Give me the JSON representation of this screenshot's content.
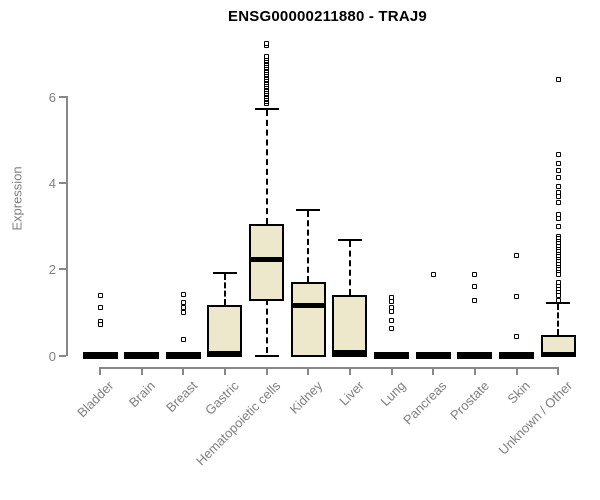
{
  "chart_data": {
    "type": "boxplot",
    "title": "ENSG00000211880 - TRAJ9",
    "ylabel": "Expression",
    "xlabel": "",
    "yticks": [
      0,
      2,
      4,
      6
    ],
    "ylim": [
      0,
      7.4
    ],
    "grid": false,
    "legend": "none",
    "colors": {
      "box_fill": "#EDE7CB",
      "box_stroke": "#000000",
      "axis_color": "#888888",
      "label_color": "#7f7f7f",
      "title_color": "#000000"
    },
    "categories": [
      "Bladder",
      "Brain",
      "Breast",
      "Gastric",
      "Hematopoietic cells",
      "Kidney",
      "Liver",
      "Lung",
      "Pancreas",
      "Prostate",
      "Skin",
      "Unknown / Other"
    ],
    "boxes": [
      {
        "category": "Bladder",
        "q1": 0,
        "median": 0,
        "q3": 0,
        "whisker_low": 0,
        "whisker_high": 0,
        "outliers": [
          1.4,
          1.12,
          0.78,
          0.72
        ]
      },
      {
        "category": "Brain",
        "q1": 0,
        "median": 0,
        "q3": 0,
        "whisker_low": 0,
        "whisker_high": 0,
        "outliers": []
      },
      {
        "category": "Breast",
        "q1": 0,
        "median": 0,
        "q3": 0,
        "whisker_low": 0,
        "whisker_high": 0,
        "outliers": [
          1.42,
          1.22,
          1.11,
          1.0,
          0.36
        ]
      },
      {
        "category": "Gastric",
        "q1": 0,
        "median": 0.05,
        "q3": 1.17,
        "whisker_low": 0,
        "whisker_high": 1.91,
        "outliers": []
      },
      {
        "category": "Hematopoietic cells",
        "q1": 1.31,
        "median": 2.22,
        "q3": 3.05,
        "whisker_low": 0,
        "whisker_high": 5.73,
        "outliers": [
          5.85,
          5.89,
          5.93,
          5.97,
          6.01,
          6.05,
          6.09,
          6.13,
          6.17,
          6.21,
          6.25,
          6.29,
          6.33,
          6.37,
          6.41,
          6.45,
          6.49,
          6.53,
          6.57,
          6.61,
          6.65,
          6.69,
          6.73,
          6.77,
          6.81,
          6.85,
          6.89,
          6.93,
          7.2,
          7.24
        ]
      },
      {
        "category": "Kidney",
        "q1": 0,
        "median": 1.17,
        "q3": 1.71,
        "whisker_low": 0,
        "whisker_high": 3.38,
        "outliers": []
      },
      {
        "category": "Liver",
        "q1": 0,
        "median": 0.08,
        "q3": 1.4,
        "whisker_low": 0,
        "whisker_high": 2.68,
        "outliers": []
      },
      {
        "category": "Lung",
        "q1": 0,
        "median": 0,
        "q3": 0,
        "whisker_low": 0,
        "whisker_high": 0,
        "outliers": [
          1.35,
          1.25,
          1.12,
          1.03,
          0.82,
          0.63
        ]
      },
      {
        "category": "Pancreas",
        "q1": 0,
        "median": 0,
        "q3": 0,
        "whisker_low": 0,
        "whisker_high": 0,
        "outliers": [
          1.87
        ]
      },
      {
        "category": "Prostate",
        "q1": 0,
        "median": 0,
        "q3": 0,
        "whisker_low": 0,
        "whisker_high": 0,
        "outliers": [
          1.89,
          1.6,
          1.27
        ]
      },
      {
        "category": "Skin",
        "q1": 0,
        "median": 0,
        "q3": 0,
        "whisker_low": 0,
        "whisker_high": 0,
        "outliers": [
          2.31,
          1.36,
          0.44
        ]
      },
      {
        "category": "Unknown / Other",
        "q1": 0,
        "median": 0.02,
        "q3": 0.48,
        "whisker_low": 0,
        "whisker_high": 1.21,
        "outliers": [
          6.41,
          4.67,
          4.46,
          4.3,
          4.13,
          3.91,
          3.79,
          3.68,
          3.56,
          3.26,
          3.19,
          2.99,
          2.76,
          2.71,
          2.65,
          2.59,
          2.53,
          2.47,
          2.41,
          2.35,
          2.29,
          2.23,
          2.17,
          2.11,
          2.05,
          1.99,
          1.93,
          1.87,
          1.69,
          1.61,
          1.54,
          1.47,
          1.4,
          1.28
        ]
      }
    ]
  }
}
